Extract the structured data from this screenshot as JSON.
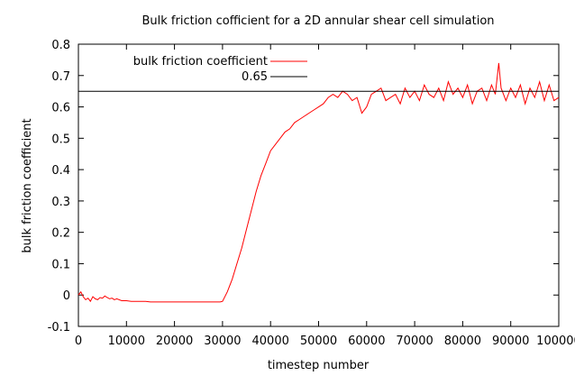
{
  "chart_data": {
    "type": "line",
    "title": "Bulk friction cofficient for a 2D annular shear cell simulation",
    "xlabel": "timestep number",
    "ylabel": "bulk friction coefficient",
    "xlim": [
      0,
      100000
    ],
    "ylim": [
      -0.1,
      0.8
    ],
    "xticks": [
      0,
      10000,
      20000,
      30000,
      40000,
      50000,
      60000,
      70000,
      80000,
      90000,
      100000
    ],
    "xtick_labels": [
      "0",
      "10000",
      "20000",
      "30000",
      "40000",
      "50000",
      "60000",
      "70000",
      "80000",
      "90000",
      "100000"
    ],
    "yticks": [
      -0.1,
      0,
      0.1,
      0.2,
      0.3,
      0.4,
      0.5,
      0.6,
      0.7,
      0.8
    ],
    "ytick_labels": [
      "-0.1",
      "0",
      "0.1",
      "0.2",
      "0.3",
      "0.4",
      "0.5",
      "0.6",
      "0.7",
      "0.8"
    ],
    "grid": false,
    "legend_position": "top-left",
    "series": [
      {
        "name": "bulk friction coefficient",
        "color": "#ff0000",
        "x": [
          0,
          500,
          1000,
          1500,
          2000,
          2500,
          3000,
          3500,
          4000,
          4500,
          5000,
          5500,
          6000,
          6500,
          7000,
          7500,
          8000,
          9000,
          10000,
          11000,
          12000,
          13000,
          14000,
          15000,
          20000,
          25000,
          29500,
          30000,
          31000,
          32000,
          33000,
          34000,
          35000,
          36000,
          37000,
          38000,
          39000,
          40000,
          41000,
          42000,
          43000,
          44000,
          45000,
          46000,
          47000,
          48000,
          49000,
          50000,
          51000,
          52000,
          53000,
          54000,
          55000,
          56000,
          57000,
          58000,
          59000,
          60000,
          61000,
          62000,
          63000,
          64000,
          65000,
          66000,
          67000,
          68000,
          69000,
          70000,
          71000,
          72000,
          73000,
          74000,
          75000,
          76000,
          77000,
          78000,
          79000,
          80000,
          81000,
          82000,
          83000,
          84000,
          85000,
          86000,
          86800,
          87500,
          88000,
          89000,
          90000,
          91000,
          92000,
          93000,
          94000,
          95000,
          96000,
          97000,
          98000,
          99000,
          100000
        ],
        "y": [
          0.0,
          0.01,
          -0.005,
          -0.015,
          -0.01,
          -0.02,
          -0.005,
          -0.012,
          -0.015,
          -0.008,
          -0.01,
          -0.003,
          -0.008,
          -0.012,
          -0.01,
          -0.015,
          -0.012,
          -0.018,
          -0.018,
          -0.02,
          -0.02,
          -0.02,
          -0.02,
          -0.022,
          -0.022,
          -0.022,
          -0.022,
          -0.02,
          0.01,
          0.05,
          0.1,
          0.15,
          0.21,
          0.27,
          0.33,
          0.38,
          0.42,
          0.46,
          0.48,
          0.5,
          0.52,
          0.53,
          0.55,
          0.56,
          0.57,
          0.58,
          0.59,
          0.6,
          0.61,
          0.63,
          0.64,
          0.63,
          0.65,
          0.64,
          0.62,
          0.63,
          0.58,
          0.6,
          0.64,
          0.65,
          0.66,
          0.62,
          0.63,
          0.64,
          0.61,
          0.66,
          0.63,
          0.65,
          0.62,
          0.67,
          0.64,
          0.63,
          0.66,
          0.62,
          0.68,
          0.64,
          0.66,
          0.63,
          0.67,
          0.61,
          0.65,
          0.66,
          0.62,
          0.67,
          0.64,
          0.74,
          0.66,
          0.62,
          0.66,
          0.63,
          0.67,
          0.61,
          0.66,
          0.63,
          0.68,
          0.62,
          0.67,
          0.62,
          0.63
        ]
      },
      {
        "name": "0.65",
        "color": "#000000",
        "x": [
          0,
          100000
        ],
        "y": [
          0.65,
          0.65
        ]
      }
    ]
  }
}
